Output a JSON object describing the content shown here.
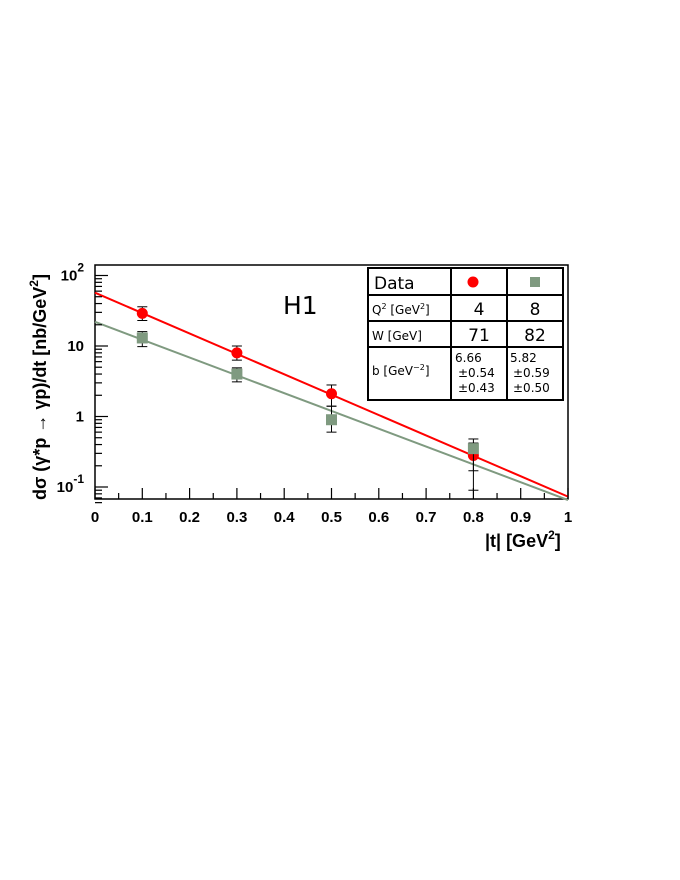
{
  "chart_data": {
    "type": "scatter",
    "annotation": "H1",
    "xlabel": "|t| [GeV",
    "xlabel_sup": "2",
    "xlabel_end": "]",
    "ylabel": "dσ (γ*p → γp)/dt  [nb/GeV",
    "ylabel_sup": "2",
    "ylabel_end": "]",
    "x_range": [
      0,
      1
    ],
    "y_range": [
      0.06,
      100
    ],
    "y_scale": "log",
    "x_ticks": [
      "0",
      "0.1",
      "0.2",
      "0.3",
      "0.4",
      "0.5",
      "0.6",
      "0.7",
      "0.8",
      "0.9",
      "1"
    ],
    "y_ticks": [
      {
        "base": "10",
        "exp": "2"
      },
      {
        "base": "10",
        "exp": ""
      },
      {
        "base": "1",
        "exp": ""
      },
      {
        "base": "10",
        "exp": "-1"
      }
    ],
    "grid": false,
    "series": [
      {
        "marker": "circle",
        "color": "#ff0000",
        "x": [
          0.1,
          0.3,
          0.5,
          0.8
        ],
        "y": [
          29,
          8,
          2.1,
          0.28
        ],
        "err_low": [
          23,
          6.3,
          1.4,
          0.17
        ],
        "err_high": [
          36,
          10,
          2.8,
          0.42
        ],
        "fit": {
          "a": 57,
          "b": 6.66
        }
      },
      {
        "marker": "square",
        "color": "#7f9a80",
        "x": [
          0.1,
          0.3,
          0.5,
          0.8
        ],
        "y": [
          13,
          4,
          0.9,
          0.35
        ],
        "err_low": [
          9.8,
          3.1,
          0.6,
          0.09
        ],
        "err_high": [
          16,
          4.9,
          1.4,
          0.48
        ],
        "fit": {
          "a": 22,
          "b": 5.82
        }
      }
    ]
  },
  "legend_table": {
    "header": "Data",
    "q2_label": "Q",
    "q2_label_sup": "2",
    "q2_label_unit": " [GeV",
    "q2_unit_sup": "2",
    "q2_label_end": "]",
    "q2_values": [
      "4",
      "8"
    ],
    "w_label": "W  [GeV]",
    "w_values": [
      "71",
      "82"
    ],
    "b_label": "b  [GeV",
    "b_label_sup": "−2",
    "b_label_end": "]",
    "b_values": [
      {
        "value": "6.66",
        "stat": "±0.54",
        "sys": "±0.43"
      },
      {
        "value": "5.82",
        "stat": "±0.59",
        "sys": "±0.50"
      }
    ]
  }
}
